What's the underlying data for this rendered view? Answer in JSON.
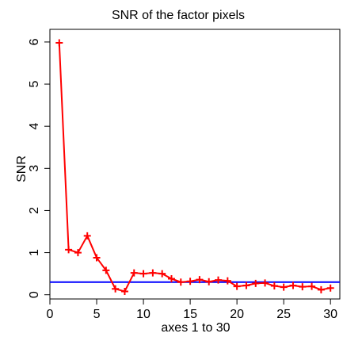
{
  "chart_data": {
    "type": "line",
    "title": "SNR of the factor pixels",
    "xlabel": "axes 1 to 30",
    "ylabel": "SNR",
    "xlim": [
      0,
      31
    ],
    "ylim": [
      -0.1,
      6.3
    ],
    "x_ticks": [
      0,
      5,
      10,
      15,
      20,
      25,
      30
    ],
    "y_ticks": [
      0,
      1,
      2,
      3,
      4,
      5,
      6
    ],
    "x_tick_labels": [
      "0",
      "5",
      "10",
      "15",
      "20",
      "25",
      "30"
    ],
    "y_tick_labels": [
      "0",
      "1",
      "2",
      "3",
      "4",
      "5",
      "6"
    ],
    "grid": false,
    "legend": "none",
    "series": [
      {
        "x": [
          1,
          2,
          3,
          4,
          5,
          6,
          7,
          8,
          9,
          10,
          11,
          12,
          13,
          14,
          15,
          16,
          17,
          18,
          19,
          20,
          21,
          22,
          23,
          24,
          25,
          26,
          27,
          28,
          29,
          30
        ],
        "values": [
          5.98,
          1.07,
          1.0,
          1.4,
          0.88,
          0.58,
          0.14,
          0.08,
          0.52,
          0.5,
          0.52,
          0.5,
          0.38,
          0.3,
          0.32,
          0.36,
          0.31,
          0.35,
          0.33,
          0.2,
          0.22,
          0.27,
          0.28,
          0.21,
          0.18,
          0.22,
          0.19,
          0.2,
          0.12,
          0.16
        ],
        "color": "#ff0000",
        "marker": "plus"
      }
    ],
    "hline": {
      "y": 0.3,
      "color": "#0000ff"
    }
  }
}
